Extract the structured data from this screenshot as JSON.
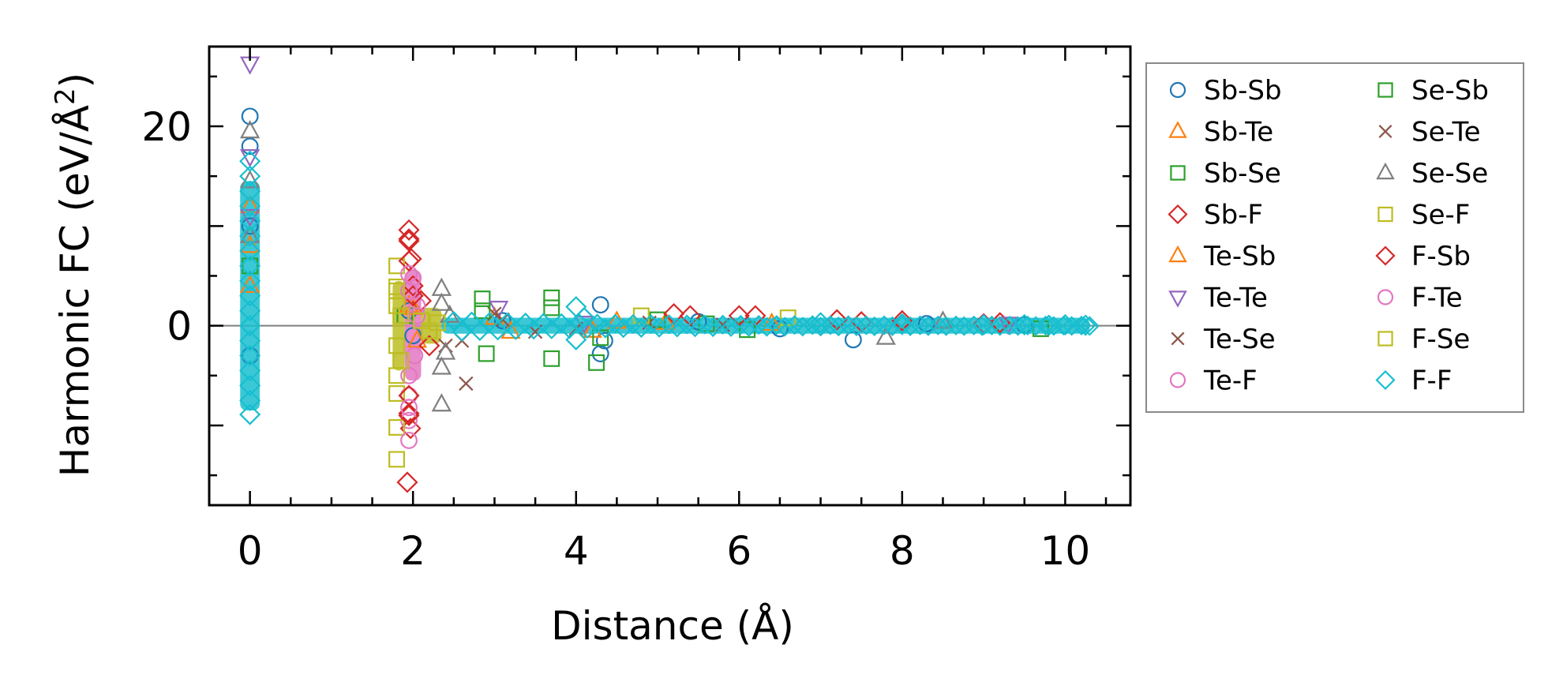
{
  "chart_data": {
    "type": "scatter",
    "xlabel": "Distance (Å)",
    "ylabel_main": "Harmonic FC (eV/Å",
    "ylabel_sup": "2",
    "ylabel_end": ")",
    "xlim": [
      -0.5,
      10.8
    ],
    "ylim": [
      -18,
      28
    ],
    "x_ticks": [
      0,
      2,
      4,
      6,
      8,
      10
    ],
    "y_ticks": [
      -20,
      0,
      20
    ],
    "x_tick_labels": [
      "0",
      "2",
      "4",
      "6",
      "8",
      "10"
    ],
    "y_tick_labels": [
      "20",
      "0"
    ],
    "zero_line": 0,
    "series": [
      {
        "name": "Sb-Sb",
        "marker": "circle",
        "color": "#1f77b4",
        "points": [
          [
            0,
            21
          ],
          [
            0,
            18
          ],
          [
            0,
            10
          ],
          [
            0,
            -3
          ],
          [
            1.95,
            1.5
          ],
          [
            2.0,
            -1
          ],
          [
            3.1,
            0.5
          ],
          [
            4.3,
            2.1
          ],
          [
            4.3,
            -2.8
          ],
          [
            4.35,
            -1.5
          ],
          [
            5.5,
            0.4
          ],
          [
            6.5,
            -0.3
          ],
          [
            7.4,
            -1.4
          ],
          [
            8.3,
            0.2
          ],
          [
            9.5,
            0.1
          ]
        ]
      },
      {
        "name": "Sb-Te",
        "marker": "triangle-up",
        "color": "#ff7f0e",
        "points": [
          [
            0,
            12
          ],
          [
            0,
            4
          ],
          [
            1.95,
            2
          ],
          [
            2.05,
            -1.5
          ],
          [
            3.0,
            0.8
          ],
          [
            4.2,
            -0.5
          ],
          [
            5.1,
            0.3
          ],
          [
            6.4,
            0.2
          ]
        ]
      },
      {
        "name": "Sb-Se",
        "marker": "square",
        "color": "#2ca02c",
        "points": [
          [
            0,
            6
          ],
          [
            1.9,
            1
          ],
          [
            2.85,
            2.7
          ],
          [
            2.9,
            -2.8
          ],
          [
            3.7,
            2.8
          ],
          [
            3.7,
            -3.3
          ],
          [
            4.25,
            -3.7
          ],
          [
            5.0,
            0.6
          ],
          [
            6.1,
            -0.4
          ],
          [
            9.7,
            -0.3
          ]
        ]
      },
      {
        "name": "Sb-F",
        "marker": "diamond",
        "color": "#d62728",
        "points": [
          [
            1.95,
            9.6
          ],
          [
            1.95,
            8.7
          ],
          [
            1.98,
            6.7
          ],
          [
            2.0,
            4.0
          ],
          [
            1.95,
            -8.8
          ],
          [
            1.97,
            -10.3
          ],
          [
            1.93,
            -15.7
          ],
          [
            2.1,
            2.5
          ],
          [
            2.2,
            -2.0
          ],
          [
            5.2,
            1.2
          ],
          [
            6.0,
            1.0
          ],
          [
            7.2,
            0.6
          ],
          [
            8.0,
            0.5
          ],
          [
            9.2,
            0.3
          ]
        ]
      },
      {
        "name": "Te-Sb",
        "marker": "triangle-up",
        "color": "#ff7f0e",
        "points": [
          [
            0,
            8
          ],
          [
            2.0,
            1.8
          ],
          [
            3.2,
            -0.6
          ],
          [
            4.5,
            0.4
          ]
        ]
      },
      {
        "name": "Te-Te",
        "marker": "triangle-down",
        "color": "#9467bd",
        "points": [
          [
            0,
            26.3
          ],
          [
            0,
            17
          ],
          [
            0,
            11
          ],
          [
            3.05,
            1.8
          ],
          [
            4.1,
            0.3
          ],
          [
            9.3,
            0.2
          ]
        ]
      },
      {
        "name": "Te-Se",
        "marker": "x",
        "color": "#8c564b",
        "points": [
          [
            2.65,
            -5.8
          ],
          [
            2.4,
            -2.0
          ],
          [
            3.0,
            1.2
          ],
          [
            3.5,
            -0.6
          ],
          [
            4.9,
            0.3
          ]
        ]
      },
      {
        "name": "Te-F",
        "marker": "circle",
        "color": "#e377c2",
        "points": [
          [
            1.95,
            -7
          ],
          [
            1.95,
            -9.5
          ],
          [
            2.02,
            -3
          ],
          [
            2.05,
            2.0
          ],
          [
            2.0,
            4.8
          ]
        ]
      },
      {
        "name": "Se-Sb",
        "marker": "square",
        "color": "#2ca02c",
        "points": [
          [
            2.85,
            1.5
          ],
          [
            3.7,
            1.8
          ],
          [
            4.3,
            -1.2
          ],
          [
            5.6,
            0.2
          ]
        ]
      },
      {
        "name": "Se-Te",
        "marker": "x",
        "color": "#8c564b",
        "points": [
          [
            2.6,
            -1.5
          ],
          [
            3.1,
            0.6
          ],
          [
            4.0,
            -0.3
          ],
          [
            5.8,
            0.1
          ]
        ]
      },
      {
        "name": "Se-Se",
        "marker": "triangle-up",
        "color": "#7f7f7f",
        "points": [
          [
            0,
            19.5
          ],
          [
            0,
            14.5
          ],
          [
            0,
            9
          ],
          [
            2.35,
            3.7
          ],
          [
            2.35,
            2.2
          ],
          [
            2.35,
            -4.2
          ],
          [
            2.35,
            -7.9
          ],
          [
            2.4,
            -2.7
          ],
          [
            2.45,
            1.0
          ],
          [
            7.8,
            -1.2
          ],
          [
            8.5,
            0.4
          ]
        ]
      },
      {
        "name": "Se-F",
        "marker": "square",
        "color": "#bcbd22",
        "points": [
          [
            1.8,
            6.0
          ],
          [
            1.8,
            3.9
          ],
          [
            1.8,
            -6.8
          ],
          [
            1.8,
            -10.2
          ],
          [
            1.8,
            -13.4
          ],
          [
            4.8,
            1.0
          ],
          [
            6.6,
            0.8
          ]
        ]
      },
      {
        "name": "F-Sb",
        "marker": "diamond",
        "color": "#d62728",
        "points": [
          [
            1.95,
            8.5
          ],
          [
            1.95,
            6.5
          ],
          [
            1.95,
            -7
          ],
          [
            1.95,
            -9
          ],
          [
            2.0,
            3.0
          ],
          [
            5.4,
            1.0
          ],
          [
            6.2,
            1.0
          ],
          [
            7.5,
            0.4
          ],
          [
            9.0,
            0.2
          ]
        ]
      },
      {
        "name": "F-Te",
        "marker": "circle",
        "color": "#e377c2",
        "points": [
          [
            1.95,
            5.2
          ],
          [
            1.95,
            3.5
          ],
          [
            1.95,
            -5
          ],
          [
            1.95,
            -8.2
          ],
          [
            1.95,
            -11.5
          ],
          [
            2.05,
            1.0
          ]
        ]
      },
      {
        "name": "F-Se",
        "marker": "square",
        "color": "#bcbd22",
        "points": [
          [
            1.8,
            3.5
          ],
          [
            1.8,
            2.0
          ],
          [
            1.85,
            1.0
          ],
          [
            1.8,
            -2.0
          ],
          [
            1.85,
            -3.5
          ],
          [
            1.8,
            -5.0
          ],
          [
            2.1,
            0.5
          ],
          [
            2.2,
            -0.5
          ],
          [
            2.3,
            0.3
          ]
        ]
      },
      {
        "name": "F-F",
        "marker": "diamond",
        "color": "#17becf",
        "points": [
          [
            0,
            16.5
          ],
          [
            0,
            15
          ],
          [
            0,
            13.5
          ],
          [
            0,
            12
          ],
          [
            0,
            10.5
          ],
          [
            0,
            9
          ],
          [
            0,
            7.5
          ],
          [
            0,
            6
          ],
          [
            0,
            4.5
          ],
          [
            0,
            3
          ],
          [
            0,
            1.5
          ],
          [
            0,
            0
          ],
          [
            0,
            -1.5
          ],
          [
            0,
            -3
          ],
          [
            0,
            -4.5
          ],
          [
            0,
            -6
          ],
          [
            0,
            -7.5
          ],
          [
            0,
            -8.9
          ],
          [
            4.0,
            1.9
          ],
          [
            4.0,
            -1.4
          ],
          [
            4.1,
            0.8
          ],
          [
            7.0,
            0.3
          ],
          [
            8.0,
            0.2
          ],
          [
            9.0,
            0.1
          ],
          [
            9.5,
            0.1
          ],
          [
            9.8,
            0.05
          ],
          [
            10.0,
            0.1
          ],
          [
            10.25,
            0.05
          ]
        ]
      }
    ]
  }
}
